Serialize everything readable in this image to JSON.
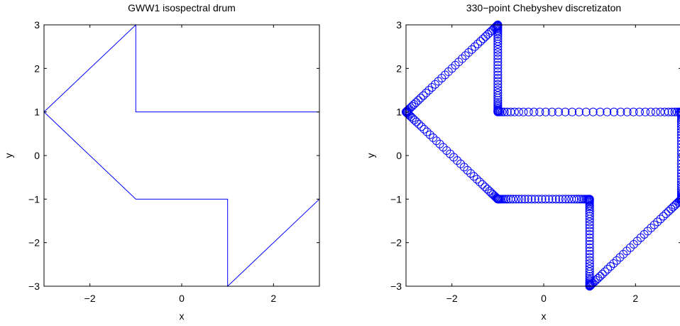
{
  "chart_data": [
    {
      "type": "line",
      "title": "GWW1 isospectral drum",
      "xlabel": "x",
      "ylabel": "y",
      "xlim": [
        -3,
        3
      ],
      "ylim": [
        -3,
        3
      ],
      "xticks": [
        -2,
        0,
        2
      ],
      "yticks": [
        3,
        2,
        1,
        0,
        -1,
        -2,
        -3
      ],
      "grid": false,
      "color": "#0000ff",
      "series": [
        {
          "x": [
            -3,
            -1,
            -1,
            3,
            3,
            1,
            1,
            -1,
            -3
          ],
          "y": [
            1,
            3,
            1,
            1,
            -1,
            -3,
            -1,
            -1,
            1
          ]
        }
      ]
    },
    {
      "type": "scatter",
      "title": "330−point Chebyshev discretizaton",
      "xlabel": "x",
      "ylabel": "y",
      "xlim": [
        -3,
        3
      ],
      "ylim": [
        -3,
        3
      ],
      "xticks": [
        -2,
        0,
        2
      ],
      "yticks": [
        3,
        2,
        1,
        0,
        -1,
        -2,
        -3
      ],
      "grid": false,
      "color": "#0000ff",
      "marker": "circle-open",
      "n_points": 330,
      "series": [
        {
          "x": [
            -3,
            -1,
            -1,
            3,
            3,
            1,
            1,
            -1,
            -3
          ],
          "y": [
            1,
            3,
            1,
            1,
            -1,
            -3,
            -1,
            -1,
            1
          ]
        }
      ]
    }
  ]
}
